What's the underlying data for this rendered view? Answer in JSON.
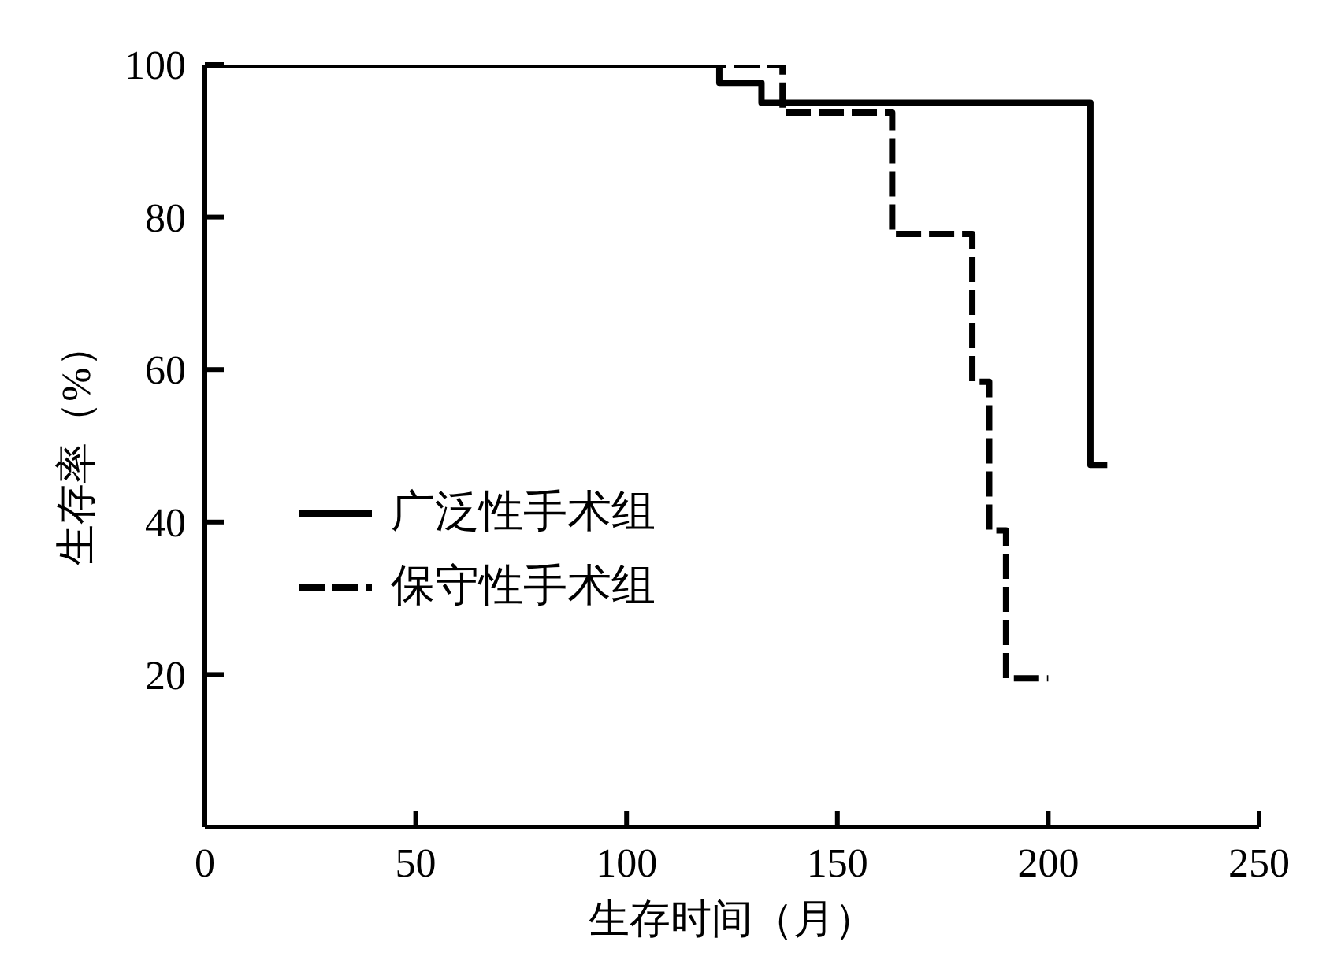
{
  "chart_data": {
    "type": "step",
    "xlabel": "生存时间（月）",
    "ylabel": "生存率（%）",
    "xlim": [
      0,
      250
    ],
    "xticks": [
      0,
      50,
      100,
      150,
      200,
      250
    ],
    "ylim": [
      0,
      100
    ],
    "yticks": [
      20,
      40,
      60,
      80,
      100
    ],
    "legend": "left",
    "series": [
      {
        "name": "广泛性手术组",
        "color": "#000000",
        "line_style": "solid",
        "x": [
          0,
          122,
          132,
          210,
          214
        ],
        "values": [
          100,
          97.6,
          95,
          47.5,
          47.5
        ]
      },
      {
        "name": "保守性手术组",
        "color": "#000000",
        "line_style": "dashed",
        "x": [
          0,
          137,
          163,
          182,
          186,
          190,
          200
        ],
        "values": [
          100,
          93.7,
          77.8,
          58.4,
          38.9,
          19.5,
          19.5
        ]
      }
    ]
  }
}
